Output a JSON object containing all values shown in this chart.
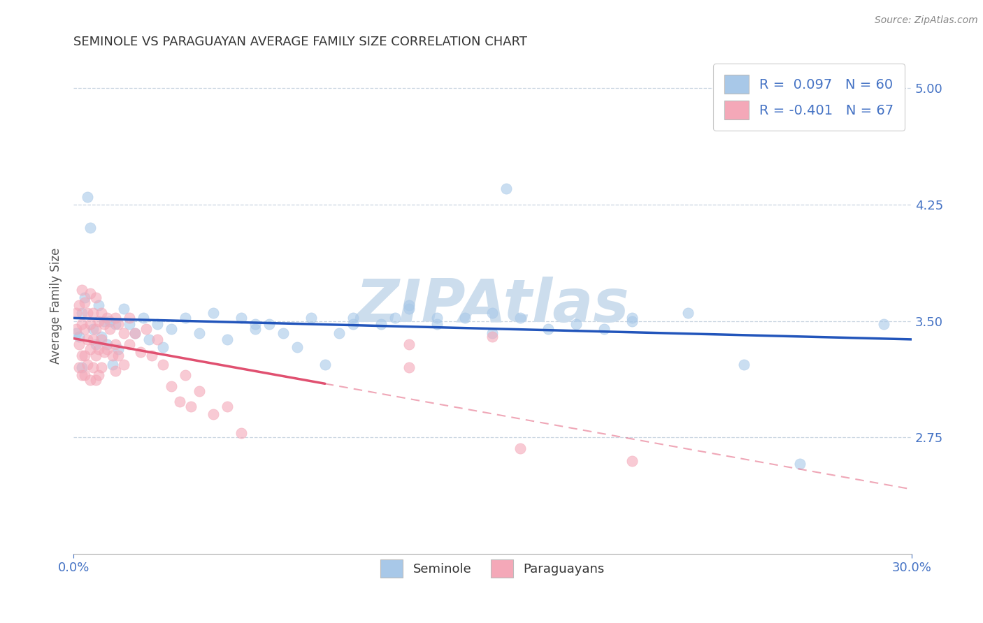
{
  "title": "SEMINOLE VS PARAGUAYAN AVERAGE FAMILY SIZE CORRELATION CHART",
  "source_text": "Source: ZipAtlas.com",
  "ylabel": "Average Family Size",
  "xmin": 0.0,
  "xmax": 0.3,
  "ymin": 2.0,
  "ymax": 5.2,
  "yticks": [
    2.75,
    3.5,
    4.25,
    5.0
  ],
  "xticklabels": [
    "0.0%",
    "30.0%"
  ],
  "seminole_color": "#a8c8e8",
  "paraguayan_color": "#f4a8b8",
  "seminole_line_color": "#2255bb",
  "paraguayan_line_color": "#e05070",
  "seminole_R": 0.097,
  "seminole_N": 60,
  "paraguayan_R": -0.401,
  "paraguayan_N": 67,
  "watermark": "ZIPAtlas",
  "watermark_color": "#ccdded",
  "legend_label1": "Seminole",
  "legend_label2": "Paraguayans",
  "tick_color": "#4472c4",
  "grid_color": "#c8d4e0",
  "seminole_points": [
    [
      0.001,
      3.42
    ],
    [
      0.002,
      3.4
    ],
    [
      0.003,
      3.55
    ],
    [
      0.003,
      3.2
    ],
    [
      0.004,
      3.65
    ],
    [
      0.005,
      4.3
    ],
    [
      0.006,
      4.1
    ],
    [
      0.007,
      3.45
    ],
    [
      0.008,
      3.35
    ],
    [
      0.009,
      3.6
    ],
    [
      0.01,
      3.4
    ],
    [
      0.011,
      3.5
    ],
    [
      0.012,
      3.35
    ],
    [
      0.013,
      3.5
    ],
    [
      0.014,
      3.22
    ],
    [
      0.015,
      3.48
    ],
    [
      0.016,
      3.32
    ],
    [
      0.018,
      3.58
    ],
    [
      0.02,
      3.48
    ],
    [
      0.022,
      3.42
    ],
    [
      0.025,
      3.52
    ],
    [
      0.027,
      3.38
    ],
    [
      0.03,
      3.48
    ],
    [
      0.032,
      3.33
    ],
    [
      0.035,
      3.45
    ],
    [
      0.04,
      3.52
    ],
    [
      0.045,
      3.42
    ],
    [
      0.05,
      3.55
    ],
    [
      0.055,
      3.38
    ],
    [
      0.06,
      3.52
    ],
    [
      0.065,
      3.45
    ],
    [
      0.07,
      3.48
    ],
    [
      0.075,
      3.42
    ],
    [
      0.08,
      3.33
    ],
    [
      0.085,
      3.52
    ],
    [
      0.09,
      3.22
    ],
    [
      0.095,
      3.42
    ],
    [
      0.1,
      3.52
    ],
    [
      0.11,
      3.48
    ],
    [
      0.115,
      3.52
    ],
    [
      0.12,
      3.58
    ],
    [
      0.13,
      3.48
    ],
    [
      0.14,
      3.52
    ],
    [
      0.15,
      3.42
    ],
    [
      0.155,
      4.35
    ],
    [
      0.16,
      3.52
    ],
    [
      0.17,
      3.45
    ],
    [
      0.18,
      3.48
    ],
    [
      0.19,
      3.45
    ],
    [
      0.2,
      3.5
    ],
    [
      0.2,
      3.52
    ],
    [
      0.22,
      3.55
    ],
    [
      0.13,
      3.52
    ],
    [
      0.12,
      3.6
    ],
    [
      0.1,
      3.48
    ],
    [
      0.15,
      3.55
    ],
    [
      0.065,
      3.48
    ],
    [
      0.26,
      2.58
    ],
    [
      0.24,
      3.22
    ],
    [
      0.29,
      3.48
    ]
  ],
  "paraguayan_points": [
    [
      0.001,
      3.55
    ],
    [
      0.001,
      3.45
    ],
    [
      0.002,
      3.6
    ],
    [
      0.002,
      3.35
    ],
    [
      0.002,
      3.2
    ],
    [
      0.003,
      3.7
    ],
    [
      0.003,
      3.48
    ],
    [
      0.003,
      3.28
    ],
    [
      0.003,
      3.15
    ],
    [
      0.004,
      3.62
    ],
    [
      0.004,
      3.45
    ],
    [
      0.004,
      3.28
    ],
    [
      0.004,
      3.15
    ],
    [
      0.005,
      3.55
    ],
    [
      0.005,
      3.38
    ],
    [
      0.005,
      3.22
    ],
    [
      0.006,
      3.68
    ],
    [
      0.006,
      3.48
    ],
    [
      0.006,
      3.32
    ],
    [
      0.006,
      3.12
    ],
    [
      0.007,
      3.55
    ],
    [
      0.007,
      3.38
    ],
    [
      0.007,
      3.2
    ],
    [
      0.008,
      3.65
    ],
    [
      0.008,
      3.45
    ],
    [
      0.008,
      3.28
    ],
    [
      0.008,
      3.12
    ],
    [
      0.009,
      3.5
    ],
    [
      0.009,
      3.32
    ],
    [
      0.009,
      3.15
    ],
    [
      0.01,
      3.55
    ],
    [
      0.01,
      3.38
    ],
    [
      0.01,
      3.2
    ],
    [
      0.011,
      3.48
    ],
    [
      0.011,
      3.3
    ],
    [
      0.012,
      3.52
    ],
    [
      0.012,
      3.32
    ],
    [
      0.013,
      3.45
    ],
    [
      0.014,
      3.28
    ],
    [
      0.015,
      3.52
    ],
    [
      0.015,
      3.35
    ],
    [
      0.015,
      3.18
    ],
    [
      0.016,
      3.48
    ],
    [
      0.016,
      3.28
    ],
    [
      0.018,
      3.42
    ],
    [
      0.018,
      3.22
    ],
    [
      0.02,
      3.52
    ],
    [
      0.02,
      3.35
    ],
    [
      0.022,
      3.42
    ],
    [
      0.024,
      3.3
    ],
    [
      0.026,
      3.45
    ],
    [
      0.028,
      3.28
    ],
    [
      0.03,
      3.38
    ],
    [
      0.032,
      3.22
    ],
    [
      0.035,
      3.08
    ],
    [
      0.038,
      2.98
    ],
    [
      0.04,
      3.15
    ],
    [
      0.042,
      2.95
    ],
    [
      0.045,
      3.05
    ],
    [
      0.05,
      2.9
    ],
    [
      0.055,
      2.95
    ],
    [
      0.06,
      2.78
    ],
    [
      0.12,
      3.35
    ],
    [
      0.12,
      3.2
    ],
    [
      0.15,
      3.4
    ],
    [
      0.2,
      2.6
    ],
    [
      0.16,
      2.68
    ]
  ]
}
